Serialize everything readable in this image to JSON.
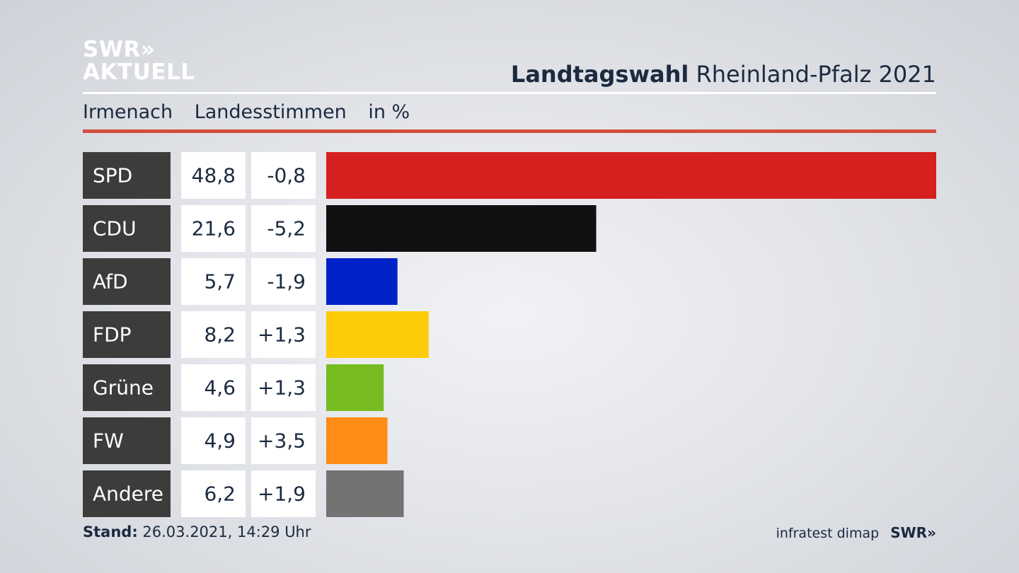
{
  "logo": {
    "line1": "SWR»",
    "line2": "AKTUELL"
  },
  "header": {
    "title_bold": "Landtagswahl",
    "title_rest": "Rheinland-Pfalz 2021"
  },
  "subheader": {
    "place": "Irmenach",
    "measure": "Landesstimmen",
    "unit": "in %"
  },
  "footer": {
    "stand_label": "Stand:",
    "stand_value": "26.03.2021, 14:29 Uhr"
  },
  "credit": {
    "source": "infratest dimap",
    "broadcaster": "SWR»"
  },
  "chart_data": {
    "type": "bar",
    "orientation": "horizontal",
    "categories": [
      "SPD",
      "CDU",
      "AfD",
      "FDP",
      "Grüne",
      "FW",
      "Andere"
    ],
    "values": [
      48.8,
      21.6,
      5.7,
      8.2,
      4.6,
      4.9,
      6.2
    ],
    "value_labels": [
      "48,8",
      "21,6",
      "5,7",
      "8,2",
      "4,6",
      "4,9",
      "6,2"
    ],
    "changes": [
      "-0,8",
      "-5,2",
      "-1,9",
      "+1,3",
      "+1,3",
      "+3,5",
      "+1,9"
    ],
    "colors": [
      "#d61f1f",
      "#111111",
      "#0022c8",
      "#fecb08",
      "#76bc21",
      "#ff8c14",
      "#737373"
    ],
    "xlim": [
      0,
      48.8
    ],
    "grid": false
  }
}
